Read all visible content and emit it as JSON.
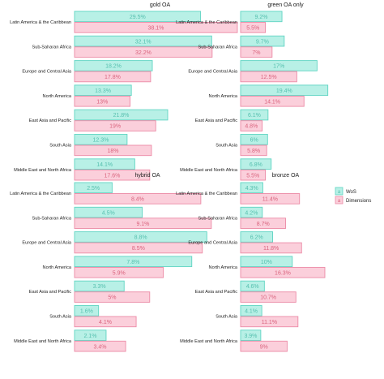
{
  "colors": {
    "wos_fill": "#b8f0e6",
    "wos_stroke": "#5fd4c2",
    "wos_text": "#55bfae",
    "dim_fill": "#fbcfdb",
    "dim_stroke": "#ec8aa6",
    "dim_text": "#d9647e"
  },
  "legend": {
    "items": [
      {
        "key": "wos",
        "label": "WoS"
      },
      {
        "key": "dim",
        "label": "Dimensions"
      }
    ],
    "swatch_letter": "a"
  },
  "chart_data": [
    {
      "type": "bar",
      "orientation": "horizontal",
      "title": "gold OA",
      "categories": [
        "Latin America & the Caribbean",
        "Sub-Saharan Africa",
        "Europe and Central Asia",
        "North America",
        "East Asia and Pacific",
        "South Asia",
        "Middle East and North Africa"
      ],
      "series": [
        {
          "name": "WoS",
          "key": "wos",
          "values": [
            29.5,
            32.1,
            18.2,
            13.3,
            21.8,
            12.3,
            14.1
          ],
          "labels": [
            "29.5%",
            "32.1%",
            "18.2%",
            "13.3%",
            "21.8%",
            "12.3%",
            "14.1%"
          ]
        },
        {
          "name": "Dimensions",
          "key": "dim",
          "values": [
            38.1,
            32.2,
            17.8,
            13,
            19,
            18,
            17.6
          ],
          "labels": [
            "38.1%",
            "32.2%",
            "17.8%",
            "13%",
            "19%",
            "18%",
            "17.6%"
          ]
        }
      ],
      "xlim": [
        0,
        40
      ]
    },
    {
      "type": "bar",
      "orientation": "horizontal",
      "title": "green OA only",
      "categories": [
        "Latin America & the Caribbean",
        "Sub-Saharan Africa",
        "Europe and Central Asia",
        "North America",
        "East Asia and Pacific",
        "South Asia",
        "Middle East and North Africa"
      ],
      "series": [
        {
          "name": "WoS",
          "key": "wos",
          "values": [
            9.2,
            9.7,
            17,
            19.4,
            6.1,
            6,
            6.8
          ],
          "labels": [
            "9.2%",
            "9.7%",
            "17%",
            "19.4%",
            "6.1%",
            "6%",
            "6.8%"
          ]
        },
        {
          "name": "Dimensions",
          "key": "dim",
          "values": [
            5.5,
            7,
            12.5,
            14.1,
            4.8,
            5.8,
            5.5
          ],
          "labels": [
            "5.5%",
            "7%",
            "12.5%",
            "14.1%",
            "4.8%",
            "5.8%",
            "5.5%"
          ]
        }
      ],
      "xlim": [
        0,
        20
      ]
    },
    {
      "type": "bar",
      "orientation": "horizontal",
      "title": "hybrid OA",
      "categories": [
        "Latin America & the Caribbean",
        "Sub-Saharan Africa",
        "Europe and Central Asia",
        "North America",
        "East Asia and Pacific",
        "South Asia",
        "Middle East and North Africa"
      ],
      "series": [
        {
          "name": "WoS",
          "key": "wos",
          "values": [
            2.5,
            4.5,
            8.8,
            7.8,
            3.3,
            1.6,
            2.1
          ],
          "labels": [
            "2.5%",
            "4.5%",
            "8.8%",
            "7.8%",
            "3.3%",
            "1.6%",
            "2.1%"
          ]
        },
        {
          "name": "Dimensions",
          "key": "dim",
          "values": [
            8.4,
            9.1,
            8.5,
            5.9,
            5,
            4.1,
            3.4
          ],
          "labels": [
            "8.4%",
            "9.1%",
            "8.5%",
            "5.9%",
            "5%",
            "4.1%",
            "3.4%"
          ]
        }
      ],
      "xlim": [
        0,
        9.7
      ]
    },
    {
      "type": "bar",
      "orientation": "horizontal",
      "title": "bronze OA",
      "categories": [
        "Latin America & the Caribbean",
        "Sub-Saharan Africa",
        "Europe and Central Asia",
        "North America",
        "East Asia and Pacific",
        "South Asia",
        "Middle East and North Africa"
      ],
      "series": [
        {
          "name": "WoS",
          "key": "wos",
          "values": [
            4.3,
            4.2,
            6.2,
            10,
            4.6,
            4.1,
            3.9
          ],
          "labels": [
            "4.3%",
            "4.2%",
            "6.2%",
            "10%",
            "4.6%",
            "4.1%",
            "3.9%"
          ]
        },
        {
          "name": "Dimensions",
          "key": "dim",
          "values": [
            11.4,
            8.7,
            11.8,
            16.3,
            10.7,
            11.1,
            9
          ],
          "labels": [
            "11.4%",
            "8.7%",
            "11.8%",
            "16.3%",
            "10.7%",
            "11.1%",
            "9%"
          ]
        }
      ],
      "xlim": [
        0,
        17.4
      ]
    }
  ]
}
